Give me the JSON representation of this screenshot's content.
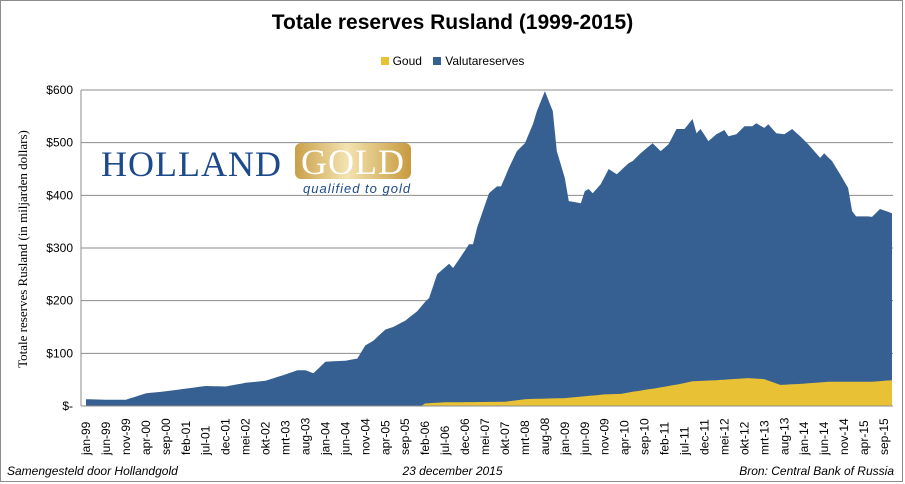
{
  "chart_data": {
    "type": "area",
    "stacked": true,
    "title": "Totale reserves Rusland (1999-2015)",
    "ylabel": "Totale reserves Rusland (in miljarden dollars)",
    "xlabel": "",
    "ylim": [
      0,
      600
    ],
    "yticks": [
      0,
      100,
      200,
      300,
      400,
      500,
      600
    ],
    "ytick_labels": [
      "$-",
      "$100",
      "$200",
      "$300",
      "$400",
      "$500",
      "$600"
    ],
    "grid": true,
    "legend_position": "top-center",
    "x_start": "jan-99",
    "x_tick_labels": [
      "jan-99",
      "jun-99",
      "nov-99",
      "apr-00",
      "sep-00",
      "feb-01",
      "jul-01",
      "dec-01",
      "mei-02",
      "okt-02",
      "mrt-03",
      "aug-03",
      "jan-04",
      "jun-04",
      "nov-04",
      "apr-05",
      "sep-05",
      "feb-06",
      "jul-06",
      "dec-06",
      "mei-07",
      "okt-07",
      "mrt-08",
      "aug-08",
      "jan-09",
      "jun-09",
      "nov-09",
      "apr-10",
      "sep-10",
      "feb-11",
      "jul-11",
      "dec-11",
      "mei-12",
      "okt-12",
      "mrt-13",
      "aug-13",
      "jan-14",
      "jun-14",
      "nov-14",
      "apr-15",
      "sep-15"
    ],
    "units": "months since jan-99; values in billion USD",
    "series": [
      {
        "name": "Goud",
        "color": "#e8c234",
        "points": [
          [
            0,
            0
          ],
          [
            84,
            0
          ],
          [
            85,
            5
          ],
          [
            90,
            7
          ],
          [
            105,
            8
          ],
          [
            110,
            13
          ],
          [
            120,
            15
          ],
          [
            130,
            22
          ],
          [
            134,
            23
          ],
          [
            137,
            27
          ],
          [
            143,
            34
          ],
          [
            149,
            42
          ],
          [
            152,
            47
          ],
          [
            158,
            49
          ],
          [
            166,
            53
          ],
          [
            170,
            51
          ],
          [
            174,
            40
          ],
          [
            179,
            42
          ],
          [
            186,
            46
          ],
          [
            197,
            46
          ],
          [
            202,
            49
          ]
        ]
      },
      {
        "name": "Valutareserves",
        "color": "#376092",
        "note": "drawn as total reserves minus gold",
        "total_points": [
          [
            0,
            13
          ],
          [
            5,
            12
          ],
          [
            10,
            12
          ],
          [
            15,
            24
          ],
          [
            20,
            28
          ],
          [
            25,
            33
          ],
          [
            30,
            38
          ],
          [
            35,
            37
          ],
          [
            40,
            44
          ],
          [
            45,
            48
          ],
          [
            50,
            60
          ],
          [
            53,
            68
          ],
          [
            55,
            68
          ],
          [
            57,
            62
          ],
          [
            60,
            84
          ],
          [
            65,
            86
          ],
          [
            68,
            90
          ],
          [
            70,
            115
          ],
          [
            72,
            124
          ],
          [
            75,
            145
          ],
          [
            77,
            150
          ],
          [
            80,
            162
          ],
          [
            83,
            180
          ],
          [
            85,
            198
          ],
          [
            86,
            205
          ],
          [
            88,
            250
          ],
          [
            91,
            270
          ],
          [
            92,
            262
          ],
          [
            96,
            307
          ],
          [
            97,
            307
          ],
          [
            98,
            338
          ],
          [
            101,
            404
          ],
          [
            103,
            417
          ],
          [
            104,
            417
          ],
          [
            106,
            452
          ],
          [
            108,
            484
          ],
          [
            110,
            499
          ],
          [
            112,
            535
          ],
          [
            113,
            560
          ],
          [
            115,
            598
          ],
          [
            117,
            560
          ],
          [
            118,
            484
          ],
          [
            120,
            433
          ],
          [
            121,
            389
          ],
          [
            124,
            385
          ],
          [
            125,
            408
          ],
          [
            126,
            412
          ],
          [
            127,
            404
          ],
          [
            129,
            421
          ],
          [
            131,
            450
          ],
          [
            133,
            440
          ],
          [
            136,
            461
          ],
          [
            137,
            465
          ],
          [
            139,
            480
          ],
          [
            142,
            499
          ],
          [
            144,
            484
          ],
          [
            146,
            497
          ],
          [
            148,
            526
          ],
          [
            150,
            526
          ],
          [
            152,
            545
          ],
          [
            153,
            518
          ],
          [
            154,
            526
          ],
          [
            156,
            503
          ],
          [
            158,
            516
          ],
          [
            160,
            524
          ],
          [
            161,
            512
          ],
          [
            163,
            516
          ],
          [
            165,
            531
          ],
          [
            167,
            531
          ],
          [
            168,
            537
          ],
          [
            170,
            528
          ],
          [
            171,
            535
          ],
          [
            173,
            518
          ],
          [
            175,
            516
          ],
          [
            177,
            526
          ],
          [
            179,
            512
          ],
          [
            181,
            497
          ],
          [
            184,
            471
          ],
          [
            185,
            480
          ],
          [
            187,
            465
          ],
          [
            189,
            440
          ],
          [
            191,
            414
          ],
          [
            192,
            370
          ],
          [
            193,
            360
          ],
          [
            196,
            360
          ],
          [
            197,
            359
          ],
          [
            199,
            374
          ],
          [
            202,
            366
          ]
        ]
      }
    ]
  },
  "logo": {
    "name_part1": "HOLLAND",
    "name_part2": "GOLD",
    "tagline": "qualified to gold"
  },
  "footer": {
    "left": "Samengesteld door Hollandgold",
    "center": "23 december 2015",
    "right": "Bron: Central Bank of Russia"
  }
}
